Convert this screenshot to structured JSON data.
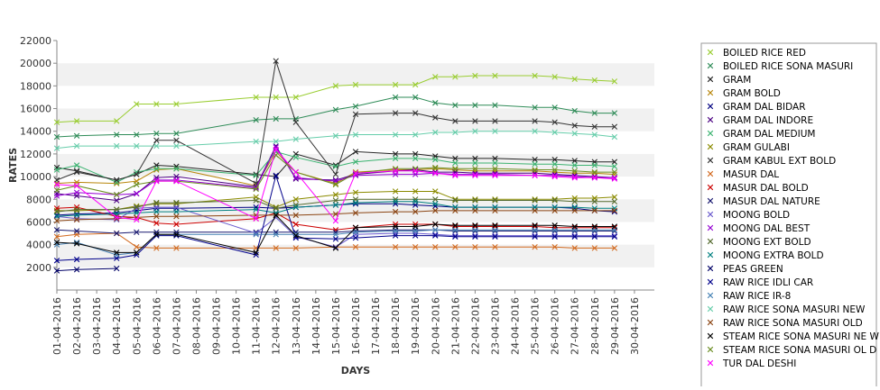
{
  "chart_data": {
    "type": "line",
    "title": "",
    "xlabel": "DAYS",
    "ylabel": "RATES",
    "ylim": [
      0,
      22000
    ],
    "yticks": [
      2000,
      4000,
      6000,
      8000,
      10000,
      12000,
      14000,
      16000,
      18000,
      20000,
      22000
    ],
    "ytick_labels": [
      "2000",
      "4000",
      "6000",
      "8000",
      "10000",
      "12000",
      "14000",
      "16000",
      "18000",
      "20000",
      "22000"
    ],
    "grid": "alternating horizontal bands",
    "legend_position": "right",
    "x": [
      "01-04-2016",
      "02-04-2016",
      "03-04-2016",
      "04-04-2016",
      "05-04-2016",
      "06-04-2016",
      "07-04-2016",
      "08-04-2016",
      "09-04-2016",
      "10-04-2016",
      "11-04-2016",
      "12-04-2016",
      "13-04-2016",
      "14-04-2016",
      "15-04-2016",
      "16-04-2016",
      "17-04-2016",
      "18-04-2016",
      "19-04-2016",
      "20-04-2016",
      "21-04-2016",
      "22-04-2016",
      "23-04-2016",
      "24-04-2016",
      "25-04-2016",
      "26-04-2016",
      "27-04-2016",
      "28-04-2016",
      "29-04-2016",
      "30-04-2016"
    ],
    "series": [
      {
        "name": "BOILED RICE RED",
        "color": "#9acd32",
        "values": [
          14800,
          14900,
          null,
          14900,
          16400,
          16400,
          16400,
          null,
          null,
          null,
          17000,
          17000,
          17000,
          null,
          18000,
          18100,
          null,
          18100,
          18100,
          18800,
          18800,
          18900,
          18900,
          null,
          18900,
          18800,
          18600,
          18500,
          18400,
          null
        ]
      },
      {
        "name": "BOILED RICE SONA MASURI",
        "color": "#2e8b57",
        "values": [
          13500,
          13600,
          null,
          13700,
          13700,
          13800,
          13800,
          null,
          null,
          null,
          15000,
          15100,
          15100,
          null,
          15900,
          16200,
          null,
          17000,
          17000,
          16500,
          16300,
          16300,
          16300,
          null,
          16100,
          16100,
          15800,
          15600,
          15600,
          null
        ]
      },
      {
        "name": "GRAM",
        "color": "#222222",
        "values": [
          10800,
          10500,
          null,
          9700,
          10200,
          11000,
          10900,
          null,
          null,
          null,
          10200,
          10000,
          12000,
          null,
          11000,
          12200,
          null,
          12000,
          12000,
          11800,
          11600,
          11600,
          11600,
          null,
          11500,
          11500,
          11400,
          11300,
          11300,
          null
        ]
      },
      {
        "name": "GRAM BOLD",
        "color": "#b8860b",
        "values": [
          9400,
          9500,
          null,
          9400,
          9600,
          10600,
          10700,
          null,
          null,
          null,
          9200,
          12200,
          10400,
          null,
          9400,
          10400,
          null,
          10600,
          10600,
          10700,
          10600,
          10500,
          10500,
          null,
          10500,
          10400,
          10300,
          10300,
          10200,
          null
        ]
      },
      {
        "name": "GRAM DAL BIDAR",
        "color": "#000080",
        "values": [
          6600,
          6700,
          null,
          6800,
          7000,
          7200,
          7200,
          null,
          null,
          null,
          7300,
          7200,
          7300,
          null,
          7500,
          7600,
          null,
          7600,
          7500,
          7400,
          7300,
          7300,
          7300,
          null,
          7300,
          7300,
          7200,
          7000,
          6900,
          null
        ]
      },
      {
        "name": "GRAM DAL INDORE",
        "color": "#4b0082",
        "values": [
          8500,
          8300,
          null,
          7900,
          8500,
          9900,
          10000,
          null,
          null,
          null,
          9100,
          12700,
          9800,
          null,
          9700,
          10200,
          null,
          10500,
          10600,
          10400,
          10400,
          10300,
          10300,
          null,
          10300,
          10200,
          10100,
          10000,
          9900,
          null
        ]
      },
      {
        "name": "GRAM DAL MEDIUM",
        "color": "#3cb371",
        "values": [
          10600,
          11000,
          null,
          9500,
          10400,
          10700,
          10700,
          null,
          null,
          null,
          10100,
          12200,
          11700,
          null,
          10900,
          11300,
          null,
          11600,
          11600,
          11500,
          11200,
          11200,
          11200,
          null,
          11100,
          11100,
          11000,
          11000,
          10900,
          null
        ]
      },
      {
        "name": "GRAM GULABI",
        "color": "#8b8b00",
        "values": [
          7000,
          7000,
          null,
          7100,
          7400,
          7600,
          7600,
          null,
          null,
          null,
          8200,
          7300,
          8000,
          null,
          8400,
          8600,
          null,
          8700,
          8700,
          8700,
          8000,
          8000,
          8000,
          null,
          8000,
          8000,
          8100,
          8100,
          8200,
          null
        ]
      },
      {
        "name": "GRAM KABUL EXT BOLD",
        "color": "#333333",
        "values": [
          9700,
          10400,
          null,
          9700,
          10200,
          13200,
          13200,
          null,
          null,
          null,
          9400,
          20200,
          14800,
          null,
          10200,
          15500,
          null,
          15600,
          15600,
          15200,
          14900,
          14900,
          14900,
          null,
          14900,
          14800,
          14500,
          14400,
          14400,
          null
        ]
      },
      {
        "name": "MASUR DAL",
        "color": "#d2691e",
        "values": [
          4700,
          4900,
          null,
          5000,
          3800,
          3700,
          3700,
          null,
          null,
          null,
          3700,
          3700,
          3700,
          null,
          3800,
          3800,
          null,
          3800,
          3800,
          3800,
          3800,
          3800,
          3800,
          null,
          3800,
          3800,
          3700,
          3700,
          3700,
          null
        ]
      },
      {
        "name": "MASUR DAL BOLD",
        "color": "#cc0000",
        "values": [
          7200,
          7300,
          null,
          6500,
          6400,
          5900,
          5800,
          null,
          null,
          null,
          6300,
          6800,
          5800,
          null,
          5300,
          5500,
          null,
          5800,
          5800,
          5800,
          5600,
          5600,
          5600,
          null,
          5600,
          5500,
          5500,
          5500,
          5500,
          null
        ]
      },
      {
        "name": "MASUR DAL NATURE",
        "color": "#191970",
        "values": [
          5300,
          5200,
          null,
          5000,
          5100,
          5100,
          5100,
          null,
          null,
          null,
          5100,
          5100,
          5100,
          null,
          5100,
          5200,
          null,
          5300,
          5300,
          5300,
          5200,
          5200,
          5200,
          null,
          5200,
          5200,
          5200,
          5200,
          5200,
          null
        ]
      },
      {
        "name": "MOONG BOLD",
        "color": "#6a5acd",
        "values": [
          6500,
          6300,
          null,
          6200,
          7200,
          7300,
          7300,
          null,
          null,
          null,
          5000,
          6400,
          4700,
          null,
          3800,
          4900,
          null,
          5000,
          5000,
          4900,
          4800,
          4800,
          4800,
          null,
          4800,
          4800,
          4800,
          4800,
          4800,
          null
        ]
      },
      {
        "name": "MOONG DAL BEST",
        "color": "#9400d3",
        "values": [
          8300,
          8600,
          null,
          8400,
          8500,
          9700,
          9700,
          null,
          null,
          null,
          9000,
          12600,
          9900,
          null,
          9600,
          10100,
          null,
          10200,
          10200,
          10300,
          10200,
          10200,
          10200,
          null,
          10100,
          10100,
          10000,
          9900,
          9900,
          null
        ]
      },
      {
        "name": "MOONG EXT BOLD",
        "color": "#556b2f",
        "values": [
          6900,
          7100,
          null,
          7100,
          7300,
          7700,
          7700,
          null,
          null,
          null,
          7900,
          7200,
          7500,
          null,
          7900,
          8000,
          null,
          8000,
          8000,
          8000,
          7900,
          7900,
          7900,
          null,
          7900,
          7900,
          7800,
          7800,
          7800,
          null
        ]
      },
      {
        "name": "MOONG EXTRA BOLD",
        "color": "#008080",
        "values": [
          6500,
          6600,
          null,
          6700,
          6800,
          6900,
          6900,
          null,
          null,
          null,
          7100,
          6800,
          7300,
          null,
          7500,
          7700,
          null,
          7800,
          7800,
          7600,
          7300,
          7300,
          7300,
          null,
          7300,
          7300,
          7300,
          7200,
          7200,
          null
        ]
      },
      {
        "name": "PEAS GREEN",
        "color": "#000066",
        "values": [
          1700,
          1800,
          null,
          1900,
          null,
          null,
          null,
          null,
          null,
          null,
          null,
          null,
          null,
          null,
          null,
          null,
          null,
          null,
          null,
          null,
          null,
          null,
          null,
          null,
          null,
          null,
          null,
          null,
          null,
          null
        ]
      },
      {
        "name": "RAW RICE IDLI CAR",
        "color": "#00008b",
        "values": [
          2600,
          2700,
          null,
          2800,
          3100,
          4800,
          4800,
          null,
          null,
          null,
          3100,
          10100,
          4600,
          null,
          4500,
          4600,
          null,
          4800,
          4800,
          4800,
          4700,
          4700,
          4700,
          null,
          4700,
          4700,
          4700,
          4700,
          4700,
          null
        ]
      },
      {
        "name": "RAW RICE IR-8",
        "color": "#4682b4",
        "values": [
          4000,
          4200,
          null,
          3100,
          3300,
          4900,
          4900,
          null,
          null,
          null,
          4900,
          4900,
          4900,
          null,
          4900,
          5100,
          null,
          5200,
          5200,
          5300,
          5300,
          5300,
          5300,
          null,
          5300,
          5300,
          5300,
          5300,
          5300,
          null
        ]
      },
      {
        "name": "RAW RICE SONA MASURI NEW",
        "color": "#66cdaa",
        "values": [
          12500,
          12700,
          null,
          12700,
          12700,
          12700,
          12700,
          null,
          null,
          null,
          13100,
          13100,
          13300,
          null,
          13600,
          13700,
          null,
          13700,
          13700,
          13900,
          13900,
          14000,
          14000,
          null,
          14000,
          13900,
          13800,
          13700,
          13500,
          null
        ]
      },
      {
        "name": "RAW RICE SONA MASURI OLD",
        "color": "#8b4513",
        "values": [
          6100,
          6200,
          null,
          6300,
          6400,
          6500,
          6500,
          null,
          null,
          null,
          6600,
          6600,
          6600,
          null,
          6700,
          6800,
          null,
          6900,
          6900,
          7000,
          7000,
          7000,
          7000,
          null,
          7000,
          7000,
          7000,
          7000,
          7000,
          null
        ]
      },
      {
        "name": "STEAM RICE SONA MASURI NEW",
        "color": "#000000",
        "values": [
          4200,
          4100,
          null,
          3300,
          3300,
          4900,
          4900,
          null,
          null,
          null,
          3300,
          6600,
          4800,
          null,
          3700,
          5500,
          null,
          5600,
          5600,
          5800,
          5700,
          5700,
          5700,
          null,
          5700,
          5700,
          5600,
          5600,
          5600,
          null
        ]
      },
      {
        "name": "STEAM RICE SONA MASURI OLD",
        "color": "#6b8e23",
        "values": [
          8800,
          9200,
          null,
          8400,
          9300,
          9600,
          9600,
          null,
          null,
          null,
          8900,
          11900,
          10400,
          null,
          9300,
          10300,
          null,
          10700,
          10700,
          10800,
          10700,
          10700,
          10700,
          null,
          10600,
          10600,
          10500,
          10400,
          10400,
          null
        ]
      },
      {
        "name": "TUR DAL DESHI",
        "color": "#ff00ff",
        "values": [
          9300,
          9200,
          null,
          6400,
          6200,
          9600,
          9600,
          null,
          null,
          null,
          6300,
          12400,
          10400,
          null,
          6100,
          10300,
          null,
          10500,
          10500,
          10300,
          10100,
          10100,
          10100,
          null,
          10100,
          10000,
          9900,
          9900,
          9800,
          null
        ]
      }
    ]
  },
  "legend": {
    "visible_labels": [
      "BOILED RICE RED",
      "BOILED RICE SONA MASURI",
      "GRAM",
      "GRAM BOLD",
      "GRAM DAL BIDAR",
      "GRAM DAL INDORE",
      "GRAM DAL MEDIUM",
      "GRAM GULABI",
      "GRAM KABUL EXT BOLD",
      "MASUR DAL",
      "MASUR DAL BOLD",
      "MASUR DAL NATURE",
      "MOONG BOLD",
      "MOONG DAL BEST",
      "MOONG EXT BOLD",
      "MOONG EXTRA BOLD",
      "PEAS GREEN",
      "RAW RICE IDLI CAR",
      "RAW RICE IR-8",
      "RAW RICE SONA MASURI NEW",
      "RAW RICE SONA MASURI OLD",
      "STEAM RICE SONA MASURI NE W",
      "STEAM RICE SONA MASURI OL D",
      "TUR DAL DESHI"
    ]
  }
}
